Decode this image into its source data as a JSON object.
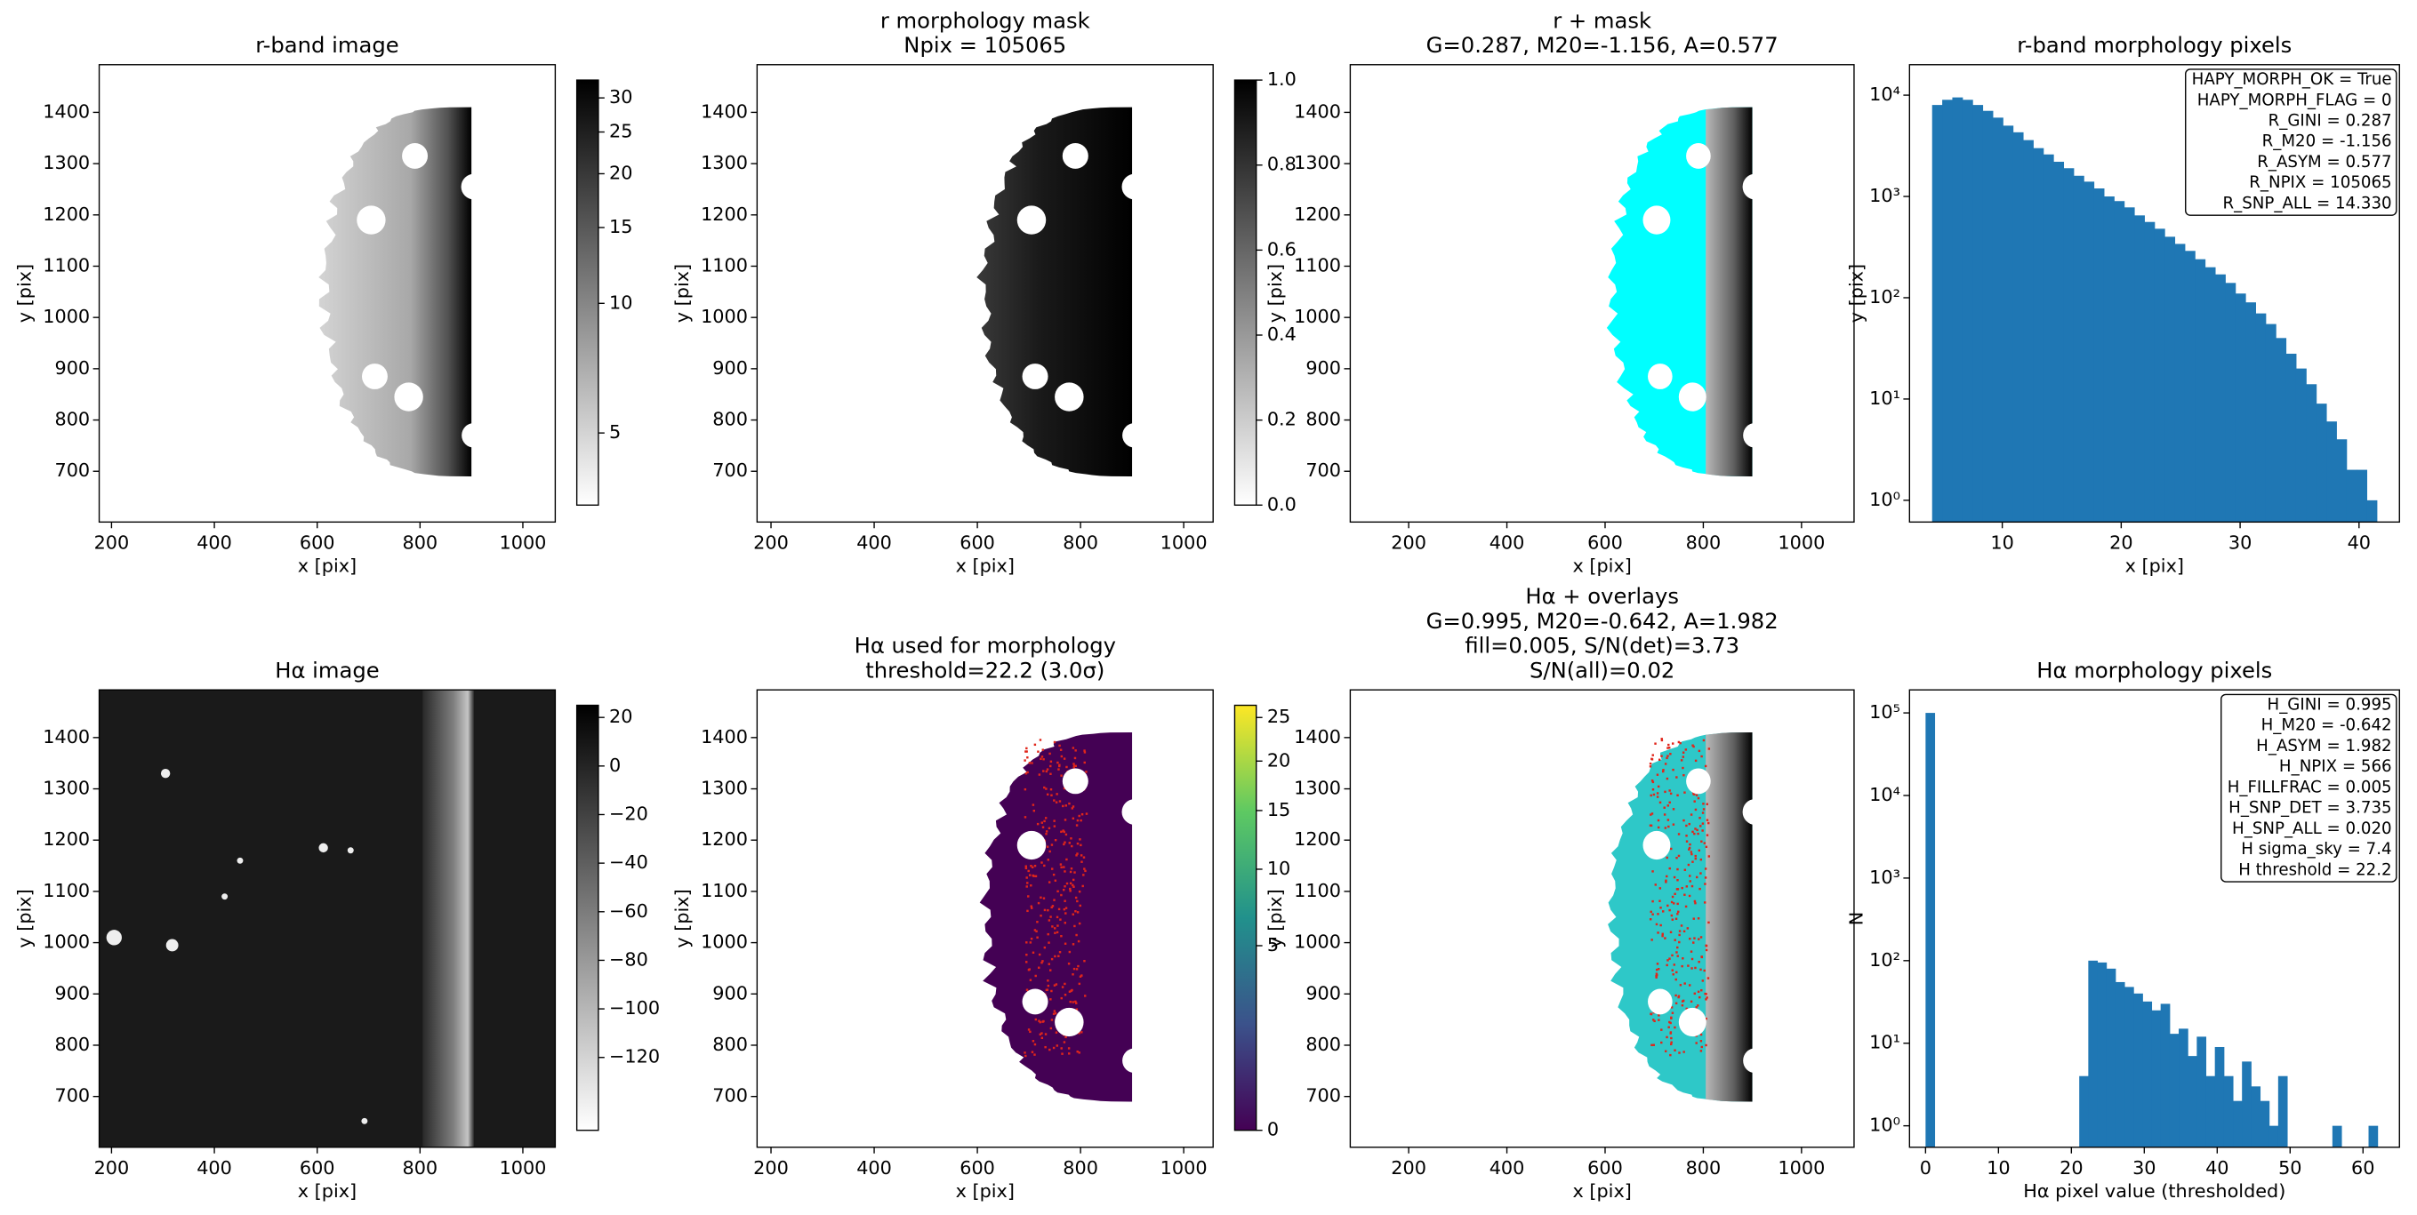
{
  "chart_data": [
    {
      "type": "image",
      "title": [
        "r-band image"
      ],
      "xlabel": "x [pix]",
      "ylabel": "y [pix]",
      "xlim": [
        176,
        1063
      ],
      "ylim": [
        601,
        1493
      ],
      "xticks": [
        200,
        400,
        600,
        800,
        1000
      ],
      "yticks": [
        700,
        800,
        900,
        1000,
        1100,
        1200,
        1300,
        1400
      ],
      "colorbar": {
        "cmap": "gray_r",
        "scale": "log",
        "lim": [
          3.4,
          33
        ],
        "ticks": [
          5,
          10,
          15,
          20,
          25,
          30
        ]
      }
    },
    {
      "type": "image",
      "title": [
        "r morphology mask",
        "Npix = 105065"
      ],
      "xlabel": "x [pix]",
      "ylabel": "y [pix]",
      "xlim": [
        173,
        1057
      ],
      "ylim": [
        601,
        1493
      ],
      "xticks": [
        200,
        400,
        600,
        800,
        1000
      ],
      "yticks": [
        700,
        800,
        900,
        1000,
        1100,
        1200,
        1300,
        1400
      ],
      "colorbar": {
        "cmap": "gray_r",
        "scale": "linear",
        "lim": [
          0,
          1
        ],
        "ticks": [
          {
            "value": 0,
            "label": "0.0"
          },
          {
            "value": 0.2,
            "label": "0.2"
          },
          {
            "value": 0.4,
            "label": "0.4"
          },
          {
            "value": 0.6,
            "label": "0.6"
          },
          {
            "value": 0.8,
            "label": "0.8"
          },
          {
            "value": 1,
            "label": "1.0"
          }
        ]
      }
    },
    {
      "type": "image",
      "title": [
        "r + mask",
        "G=0.287, M20=-1.156, A=0.577"
      ],
      "xlabel": "x [pix]",
      "ylabel": "y [pix]",
      "xlim": [
        81,
        1107
      ],
      "ylim": [
        601,
        1493
      ],
      "xticks": [
        200,
        400,
        600,
        800,
        1000
      ],
      "yticks": [
        700,
        800,
        900,
        1000,
        1100,
        1200,
        1300,
        1400
      ]
    },
    {
      "type": "histogram",
      "title": [
        "r-band morphology pixels"
      ],
      "xlabel": "x [pix]",
      "ylabel": "y [pix]",
      "color": "#1f77b4",
      "log_y": true,
      "bins": [
        4.1,
        4.95,
        5.8,
        6.65,
        7.5,
        8.35,
        9.2,
        10.05,
        10.9,
        11.75,
        12.6,
        13.45,
        14.3,
        15.15,
        16,
        16.85,
        17.7,
        18.55,
        19.4,
        20.25,
        21.1,
        21.95,
        22.8,
        23.65,
        24.5,
        25.35,
        26.2,
        27.05,
        27.9,
        28.75,
        29.6,
        30.45,
        31.3,
        32.15,
        33,
        33.85,
        34.7,
        35.55,
        36.4,
        37.25,
        38.1,
        38.95,
        39.8,
        40.65,
        41.5
      ],
      "values": [
        8000,
        9000,
        9500,
        9000,
        8000,
        7000,
        6000,
        5000,
        4300,
        3600,
        3000,
        2600,
        2200,
        1900,
        1600,
        1400,
        1200,
        1000,
        900,
        780,
        650,
        560,
        480,
        400,
        340,
        290,
        240,
        200,
        170,
        140,
        110,
        90,
        70,
        55,
        40,
        28,
        20,
        14,
        9,
        6,
        4,
        2,
        2,
        1
      ],
      "xlim": [
        2.2,
        43.4
      ],
      "ylim": [
        0.61,
        20000
      ],
      "xticks": [
        10,
        20,
        30,
        40
      ],
      "yticks": [
        {
          "value": 1,
          "label": "10⁰"
        },
        {
          "value": 10,
          "label": "10¹"
        },
        {
          "value": 100,
          "label": "10²"
        },
        {
          "value": 1000,
          "label": "10³"
        },
        {
          "value": 10000,
          "label": "10⁴"
        }
      ],
      "annotation": [
        "HAPY_MORPH_OK = True",
        "HAPY_MORPH_FLAG = 0",
        "R_GINI = 0.287",
        "R_M20 = -1.156",
        "R_ASYM = 0.577",
        "R_NPIX = 105065",
        "R_SNP_ALL = 14.330"
      ]
    },
    {
      "type": "image",
      "title": [
        "Hα image"
      ],
      "xlabel": "x [pix]",
      "ylabel": "y [pix]",
      "xlim": [
        176,
        1063
      ],
      "ylim": [
        601,
        1493
      ],
      "xticks": [
        200,
        400,
        600,
        800,
        1000
      ],
      "yticks": [
        700,
        800,
        900,
        1000,
        1100,
        1200,
        1300,
        1400
      ],
      "colorbar": {
        "cmap": "gray_r",
        "scale": "linear",
        "lim": [
          -150,
          25
        ],
        "ticks": [
          20,
          0,
          {
            "value": -20,
            "label": "−20"
          },
          {
            "value": -40,
            "label": "−40"
          },
          {
            "value": -60,
            "label": "−60"
          },
          {
            "value": -80,
            "label": "−80"
          },
          {
            "value": -100,
            "label": "−100"
          },
          {
            "value": -120,
            "label": "−120"
          }
        ]
      }
    },
    {
      "type": "image",
      "title": [
        "Hα used for morphology",
        "threshold=22.2 (3.0σ)"
      ],
      "xlabel": "x [pix]",
      "ylabel": "y [pix]",
      "xlim": [
        173,
        1057
      ],
      "ylim": [
        601,
        1493
      ],
      "xticks": [
        200,
        400,
        600,
        800,
        1000
      ],
      "yticks": [
        700,
        800,
        900,
        1000,
        1100,
        1200,
        1300,
        1400
      ],
      "colorbar": {
        "cmap": "viridis",
        "scale": "sqrt",
        "lim": [
          0,
          26.5
        ],
        "ticks": [
          0,
          5,
          10,
          15,
          20,
          25
        ]
      }
    },
    {
      "type": "image",
      "title": [
        "Hα + overlays",
        "G=0.995, M20=-0.642, A=1.982",
        "fill=0.005, S/N(det)=3.73",
        "S/N(all)=0.02"
      ],
      "xlabel": "x [pix]",
      "ylabel": "y [pix]",
      "xlim": [
        81,
        1107
      ],
      "ylim": [
        601,
        1493
      ],
      "xticks": [
        200,
        400,
        600,
        800,
        1000
      ],
      "yticks": [
        700,
        800,
        900,
        1000,
        1100,
        1200,
        1300,
        1400
      ]
    },
    {
      "type": "histogram",
      "title": [
        "Hα morphology pixels"
      ],
      "xlabel": "Hα pixel value (thresholded)",
      "ylabel": "N",
      "color": "#1f77b4",
      "log_y": true,
      "bins": [
        0,
        1.24,
        2.48,
        3.72,
        4.96,
        6.2,
        7.44,
        8.68,
        9.92,
        11.16,
        12.4,
        13.64,
        14.88,
        16.12,
        17.36,
        18.6,
        19.84,
        21.08,
        22.32,
        23.56,
        24.8,
        26.04,
        27.28,
        28.52,
        29.76,
        31,
        32.24,
        33.48,
        34.72,
        35.96,
        37.2,
        38.44,
        39.68,
        40.92,
        42.16,
        43.4,
        44.64,
        45.88,
        47.12,
        48.36,
        49.6,
        50.84,
        52.08,
        53.32,
        54.56,
        55.8,
        57.04,
        58.28,
        59.52,
        60.76,
        62
      ],
      "values": [
        100000,
        0,
        0,
        0,
        0,
        0,
        0,
        0,
        0,
        0,
        0,
        0,
        0,
        0,
        0,
        0,
        0,
        4,
        100,
        95,
        80,
        55,
        48,
        40,
        32,
        25,
        30,
        13,
        15,
        7,
        12,
        4,
        9,
        4,
        2,
        6,
        3,
        2,
        1,
        4,
        0,
        0,
        0,
        0,
        0,
        1,
        0,
        0,
        0,
        1
      ],
      "xlim": [
        -2.2,
        65
      ],
      "ylim": [
        0.55,
        190000
      ],
      "xticks": [
        0,
        10,
        20,
        30,
        40,
        50,
        60
      ],
      "yticks": [
        {
          "value": 1,
          "label": "10⁰"
        },
        {
          "value": 10,
          "label": "10¹"
        },
        {
          "value": 100,
          "label": "10²"
        },
        {
          "value": 1000,
          "label": "10³"
        },
        {
          "value": 10000,
          "label": "10⁴"
        },
        {
          "value": 100000,
          "label": "10⁵"
        }
      ],
      "annotation": [
        "H_GINI = 0.995",
        "H_M20 = -0.642",
        "H_ASYM = 1.982",
        "H_NPIX = 566",
        "H_FILLFRAC = 0.005",
        "H_SNP_DET = 3.735",
        "H_SNP_ALL = 0.020",
        "H sigma_sky = 7.4",
        "H threshold = 22.2"
      ]
    }
  ]
}
